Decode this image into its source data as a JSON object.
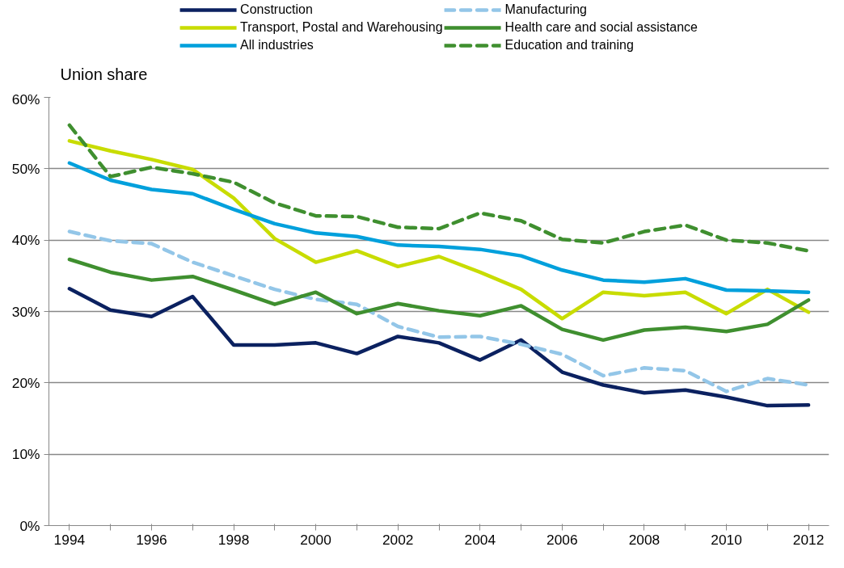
{
  "chart_data": {
    "type": "line",
    "ylabel": "Union share",
    "categories": [
      "1994",
      null,
      "1996",
      null,
      "1998",
      null,
      "2000",
      null,
      "2002",
      null,
      "2004",
      null,
      "2006",
      null,
      "2008",
      null,
      "2010",
      null,
      "2012"
    ],
    "series": [
      {
        "name": "Construction",
        "color": "#0b2160",
        "line_style": "solid",
        "values": [
          33.2,
          30.2,
          29.3,
          32.1,
          25.3,
          25.3,
          25.6,
          24.1,
          26.5,
          25.6,
          23.2,
          26.0,
          21.5,
          19.7,
          18.6,
          19.0,
          18.0,
          16.8,
          16.9
        ]
      },
      {
        "name": "Manufacturing",
        "color": "#93c6e8",
        "line_style": "dashed",
        "values": [
          41.2,
          39.9,
          39.5,
          36.9,
          35.0,
          33.1,
          31.7,
          31.0,
          27.9,
          26.4,
          26.5,
          25.4,
          24.0,
          21.0,
          22.1,
          21.7,
          18.8,
          20.6,
          19.7
        ]
      },
      {
        "name": "Transport, Postal and Warehousing",
        "color": "#c8dc00",
        "line_style": "solid",
        "values": [
          53.9,
          52.5,
          51.3,
          49.9,
          45.9,
          40.2,
          36.9,
          38.5,
          36.3,
          37.7,
          35.5,
          33.1,
          29.0,
          32.7,
          32.2,
          32.7,
          29.7,
          33.1,
          29.9
        ]
      },
      {
        "name": "Health care and social assistance",
        "color": "#3f8f2f",
        "line_style": "solid",
        "values": [
          37.3,
          35.5,
          34.4,
          34.9,
          33.0,
          31.0,
          32.7,
          29.7,
          31.1,
          30.1,
          29.4,
          30.8,
          27.5,
          26.0,
          27.4,
          27.8,
          27.2,
          28.2,
          31.6
        ]
      },
      {
        "name": "All industries",
        "color": "#00a0dc",
        "line_style": "solid",
        "values": [
          50.8,
          48.4,
          47.1,
          46.5,
          44.3,
          42.3,
          41.0,
          40.5,
          39.3,
          39.1,
          38.7,
          37.8,
          35.8,
          34.4,
          34.1,
          34.6,
          33.0,
          32.9,
          32.7
        ]
      },
      {
        "name": "Education and training",
        "color": "#3f8f2f",
        "line_style": "dashed",
        "values": [
          56.1,
          48.9,
          50.2,
          49.3,
          48.1,
          45.2,
          43.4,
          43.3,
          41.8,
          41.6,
          43.8,
          42.7,
          40.1,
          39.6,
          41.2,
          42.1,
          40.0,
          39.6,
          38.5
        ]
      }
    ],
    "ylim": [
      0,
      60
    ],
    "yticks": [
      {
        "value": 0,
        "label": "0%"
      },
      {
        "value": 10,
        "label": "10%"
      },
      {
        "value": 20,
        "label": "20%"
      },
      {
        "value": 30,
        "label": "30%"
      },
      {
        "value": 40,
        "label": "40%"
      },
      {
        "value": 50,
        "label": "50%"
      },
      {
        "value": 60,
        "label": "60%"
      }
    ],
    "grid": "y",
    "legend": "top",
    "marker": "none"
  }
}
